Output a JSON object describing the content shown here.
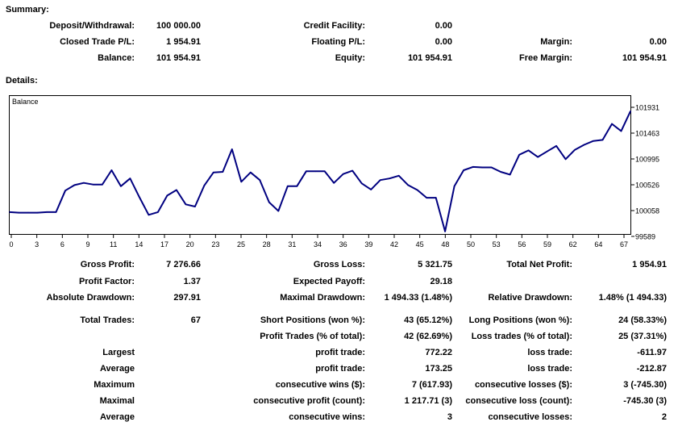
{
  "summary": {
    "heading": "Summary:",
    "deposit_label": "Deposit/Withdrawal:",
    "deposit_value": "100 000.00",
    "credit_label": "Credit Facility:",
    "credit_value": "0.00",
    "closed_label": "Closed Trade P/L:",
    "closed_value": "1 954.91",
    "floating_label": "Floating P/L:",
    "floating_value": "0.00",
    "margin_label": "Margin:",
    "margin_value": "0.00",
    "balance_label": "Balance:",
    "balance_value": "101 954.91",
    "equity_label": "Equity:",
    "equity_value": "101 954.91",
    "free_margin_label": "Free Margin:",
    "free_margin_value": "101 954.91"
  },
  "details": {
    "heading": "Details:"
  },
  "chart_data": {
    "type": "line",
    "series": [
      {
        "name": "Balance",
        "color": "#000080",
        "values": [
          100030,
          100020,
          100020,
          100020,
          100030,
          100030,
          100420,
          100520,
          100560,
          100530,
          100530,
          100790,
          100500,
          100640,
          100300,
          99980,
          100030,
          100330,
          100430,
          100170,
          100130,
          100510,
          100750,
          100760,
          101170,
          100580,
          100750,
          100610,
          100210,
          100050,
          100500,
          100500,
          100770,
          100770,
          100770,
          100560,
          100720,
          100780,
          100550,
          100440,
          100610,
          100640,
          100690,
          100520,
          100430,
          100290,
          100290,
          99680,
          100500,
          100790,
          100850,
          100840,
          100840,
          100760,
          100710,
          101070,
          101150,
          101030,
          101130,
          101230,
          100990,
          101160,
          101250,
          101320,
          101340,
          101630,
          101500,
          101860
        ]
      }
    ],
    "x_ticks": [
      "0",
      "3",
      "6",
      "9",
      "11",
      "14",
      "17",
      "20",
      "23",
      "25",
      "28",
      "31",
      "34",
      "36",
      "39",
      "42",
      "45",
      "48",
      "50",
      "53",
      "56",
      "59",
      "62",
      "64",
      "67"
    ],
    "y_ticks": [
      "101931",
      "101463",
      "100995",
      "100526",
      "100058",
      "99589"
    ],
    "xlim": [
      0,
      67
    ],
    "ylim": [
      99589,
      101931
    ],
    "legend": "Balance",
    "legend_position": "top-left"
  },
  "stats": {
    "gross_profit_label": "Gross Profit:",
    "gross_profit_value": "7 276.66",
    "gross_loss_label": "Gross Loss:",
    "gross_loss_value": "5 321.75",
    "total_net_profit_label": "Total Net Profit:",
    "total_net_profit_value": "1 954.91",
    "profit_factor_label": "Profit Factor:",
    "profit_factor_value": "1.37",
    "expected_payoff_label": "Expected Payoff:",
    "expected_payoff_value": "29.18",
    "absolute_drawdown_label": "Absolute Drawdown:",
    "absolute_drawdown_value": "297.91",
    "maximal_drawdown_label": "Maximal Drawdown:",
    "maximal_drawdown_value": "1 494.33 (1.48%)",
    "relative_drawdown_label": "Relative Drawdown:",
    "relative_drawdown_value": "1.48% (1 494.33)",
    "total_trades_label": "Total Trades:",
    "total_trades_value": "67",
    "short_positions_label": "Short Positions (won %):",
    "short_positions_value": "43 (65.12%)",
    "long_positions_label": "Long Positions (won %):",
    "long_positions_value": "24 (58.33%)",
    "profit_trades_label": "Profit Trades (% of total):",
    "profit_trades_value": "42 (62.69%)",
    "loss_trades_label": "Loss trades (% of total):",
    "loss_trades_value": "25 (37.31%)",
    "largest_label": "Largest",
    "largest_profit_label": "profit trade:",
    "largest_profit_value": "772.22",
    "largest_loss_label": "loss trade:",
    "largest_loss_value": "-611.97",
    "average_label": "Average",
    "average_profit_label": "profit trade:",
    "average_profit_value": "173.25",
    "average_loss_label": "loss trade:",
    "average_loss_value": "-212.87",
    "maximum_label": "Maximum",
    "max_consec_wins_label": "consecutive wins ($):",
    "max_consec_wins_value": "7 (617.93)",
    "max_consec_losses_label": "consecutive losses ($):",
    "max_consec_losses_value": "3 (-745.30)",
    "maximal_label": "Maximal",
    "maximal_consec_profit_label": "consecutive profit (count):",
    "maximal_consec_profit_value": "1 217.71 (3)",
    "maximal_consec_loss_label": "consecutive loss (count):",
    "maximal_consec_loss_value": "-745.30 (3)",
    "average2_label": "Average",
    "avg_consec_wins_label": "consecutive wins:",
    "avg_consec_wins_value": "3",
    "avg_consec_losses_label": "consecutive losses:",
    "avg_consec_losses_value": "2"
  }
}
